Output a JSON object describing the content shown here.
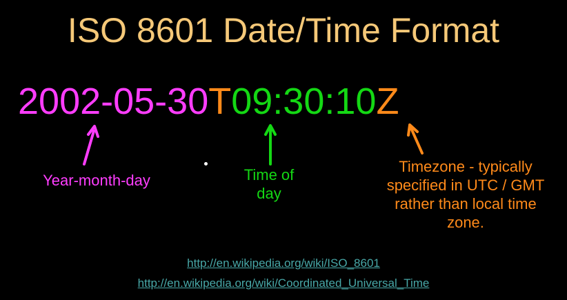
{
  "title": "ISO 8601 Date/Time Format",
  "datetime": {
    "date": "2002-05-30",
    "separator": "T",
    "time": "09:30:10",
    "zone": "Z"
  },
  "labels": {
    "date": "Year-month-day",
    "time": [
      "Time of",
      "day"
    ],
    "zone": [
      "Timezone - typically",
      "specified in UTC / GMT",
      "rather than local time",
      "zone."
    ]
  },
  "links": [
    "http://en.wikipedia.org/wiki/ISO_8601",
    "http://en.wikipedia.org/wiki/Coordinated_Universal_Time"
  ],
  "colors": {
    "background": "#000000",
    "title": "#f5c878",
    "date": "#ff3dff",
    "time": "#14d814",
    "zone": "#ff8a1a",
    "link": "#48a8a8"
  }
}
